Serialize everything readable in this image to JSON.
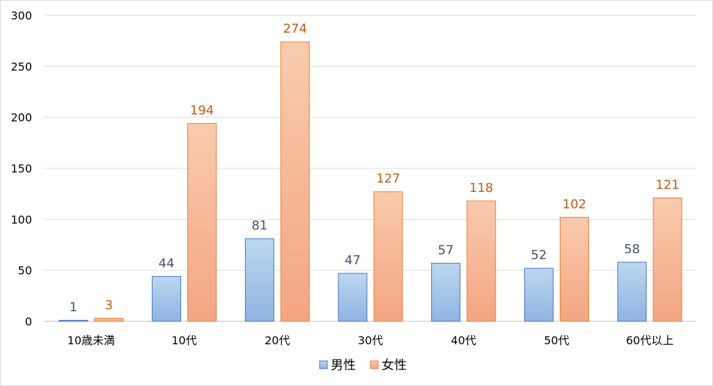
{
  "chart_data": {
    "type": "bar",
    "categories": [
      "10歳未満",
      "10代",
      "20代",
      "30代",
      "40代",
      "50代",
      "60代以上"
    ],
    "series": [
      {
        "name": "男性",
        "values": [
          1,
          44,
          81,
          47,
          57,
          52,
          58
        ],
        "color": "#4472c4",
        "fill_top": "#bdd7ee",
        "fill_bottom": "#8fb4e3",
        "label_color": "#44546a"
      },
      {
        "name": "女性",
        "values": [
          3,
          194,
          274,
          127,
          118,
          102,
          121
        ],
        "color": "#ed7d31",
        "fill_top": "#f8cbad",
        "fill_bottom": "#f4a582",
        "label_color": "#c55a11"
      }
    ],
    "ylim": [
      0,
      300
    ],
    "yticks": [
      0,
      50,
      100,
      150,
      200,
      250,
      300
    ],
    "grid": true,
    "legend_position": "bottom",
    "title": "",
    "xlabel": "",
    "ylabel": ""
  }
}
